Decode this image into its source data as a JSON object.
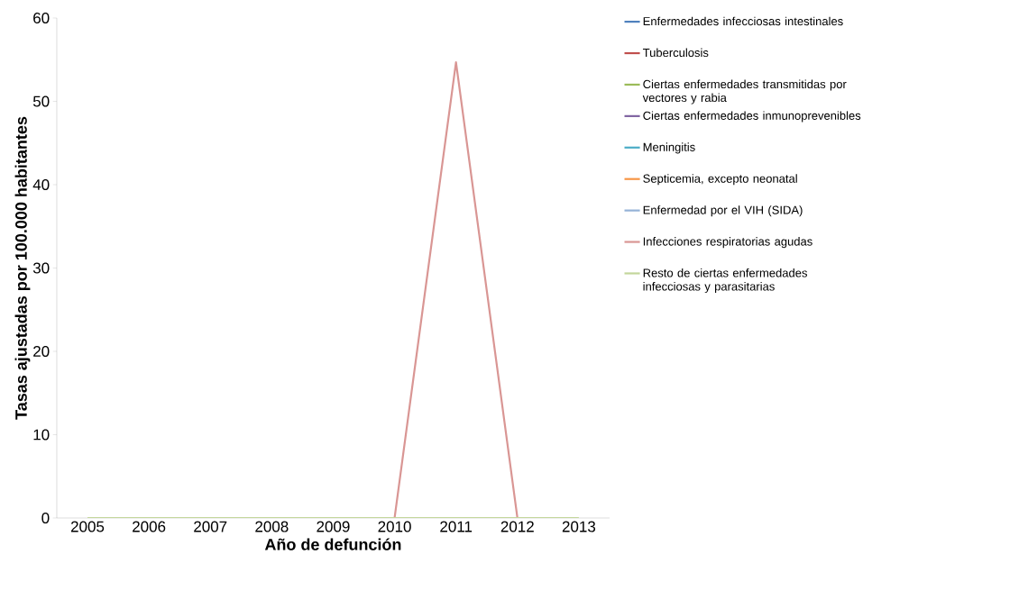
{
  "chart_data": {
    "type": "line",
    "xlabel": "Año de defunción",
    "ylabel": "Tasas ajustadas por 100.000 habitantes",
    "categories": [
      "2005",
      "2006",
      "2007",
      "2008",
      "2009",
      "2010",
      "2011",
      "2012",
      "2013"
    ],
    "series": [
      {
        "name": "Enfermedades infecciosas intestinales",
        "color": "#4f81bd",
        "values": [
          null,
          null,
          null,
          null,
          null,
          null,
          null,
          null,
          null
        ]
      },
      {
        "name": "Tuberculosis",
        "color": "#c0504d",
        "values": [
          null,
          null,
          null,
          null,
          null,
          null,
          null,
          null,
          null
        ]
      },
      {
        "name": "Ciertas enfermedades transmitidas por vectores y rabia",
        "color": "#9bbb59",
        "values": [
          null,
          null,
          null,
          null,
          null,
          null,
          null,
          null,
          null
        ]
      },
      {
        "name": "Ciertas enfermedades inmunoprevenibles",
        "color": "#8064a2",
        "values": [
          null,
          null,
          null,
          null,
          null,
          null,
          null,
          null,
          null
        ]
      },
      {
        "name": "Meningitis",
        "color": "#4bacc6",
        "values": [
          null,
          null,
          null,
          null,
          null,
          null,
          null,
          null,
          null
        ]
      },
      {
        "name": "Septicemia, excepto neonatal",
        "color": "#f79646",
        "values": [
          null,
          null,
          null,
          null,
          null,
          null,
          null,
          null,
          null
        ]
      },
      {
        "name": "Enfermedad por el VIH (SIDA)",
        "color": "#95b3d7",
        "values": [
          null,
          null,
          null,
          null,
          null,
          null,
          null,
          null,
          null
        ]
      },
      {
        "name": "Infecciones respiratorias agudas",
        "color": "#d99694",
        "values": [
          null,
          null,
          null,
          null,
          null,
          0,
          54.7,
          0,
          null
        ]
      },
      {
        "name": "Resto de ciertas enfermedades infecciosas y parasitarias",
        "color": "#c3d69b",
        "values": [
          0,
          0,
          0,
          0,
          0,
          0,
          0,
          0,
          0
        ]
      }
    ],
    "ylim": [
      0,
      60
    ],
    "yticks": [
      0,
      10,
      20,
      30,
      40,
      50,
      60
    ],
    "legend": "right",
    "line_style": "solid"
  }
}
